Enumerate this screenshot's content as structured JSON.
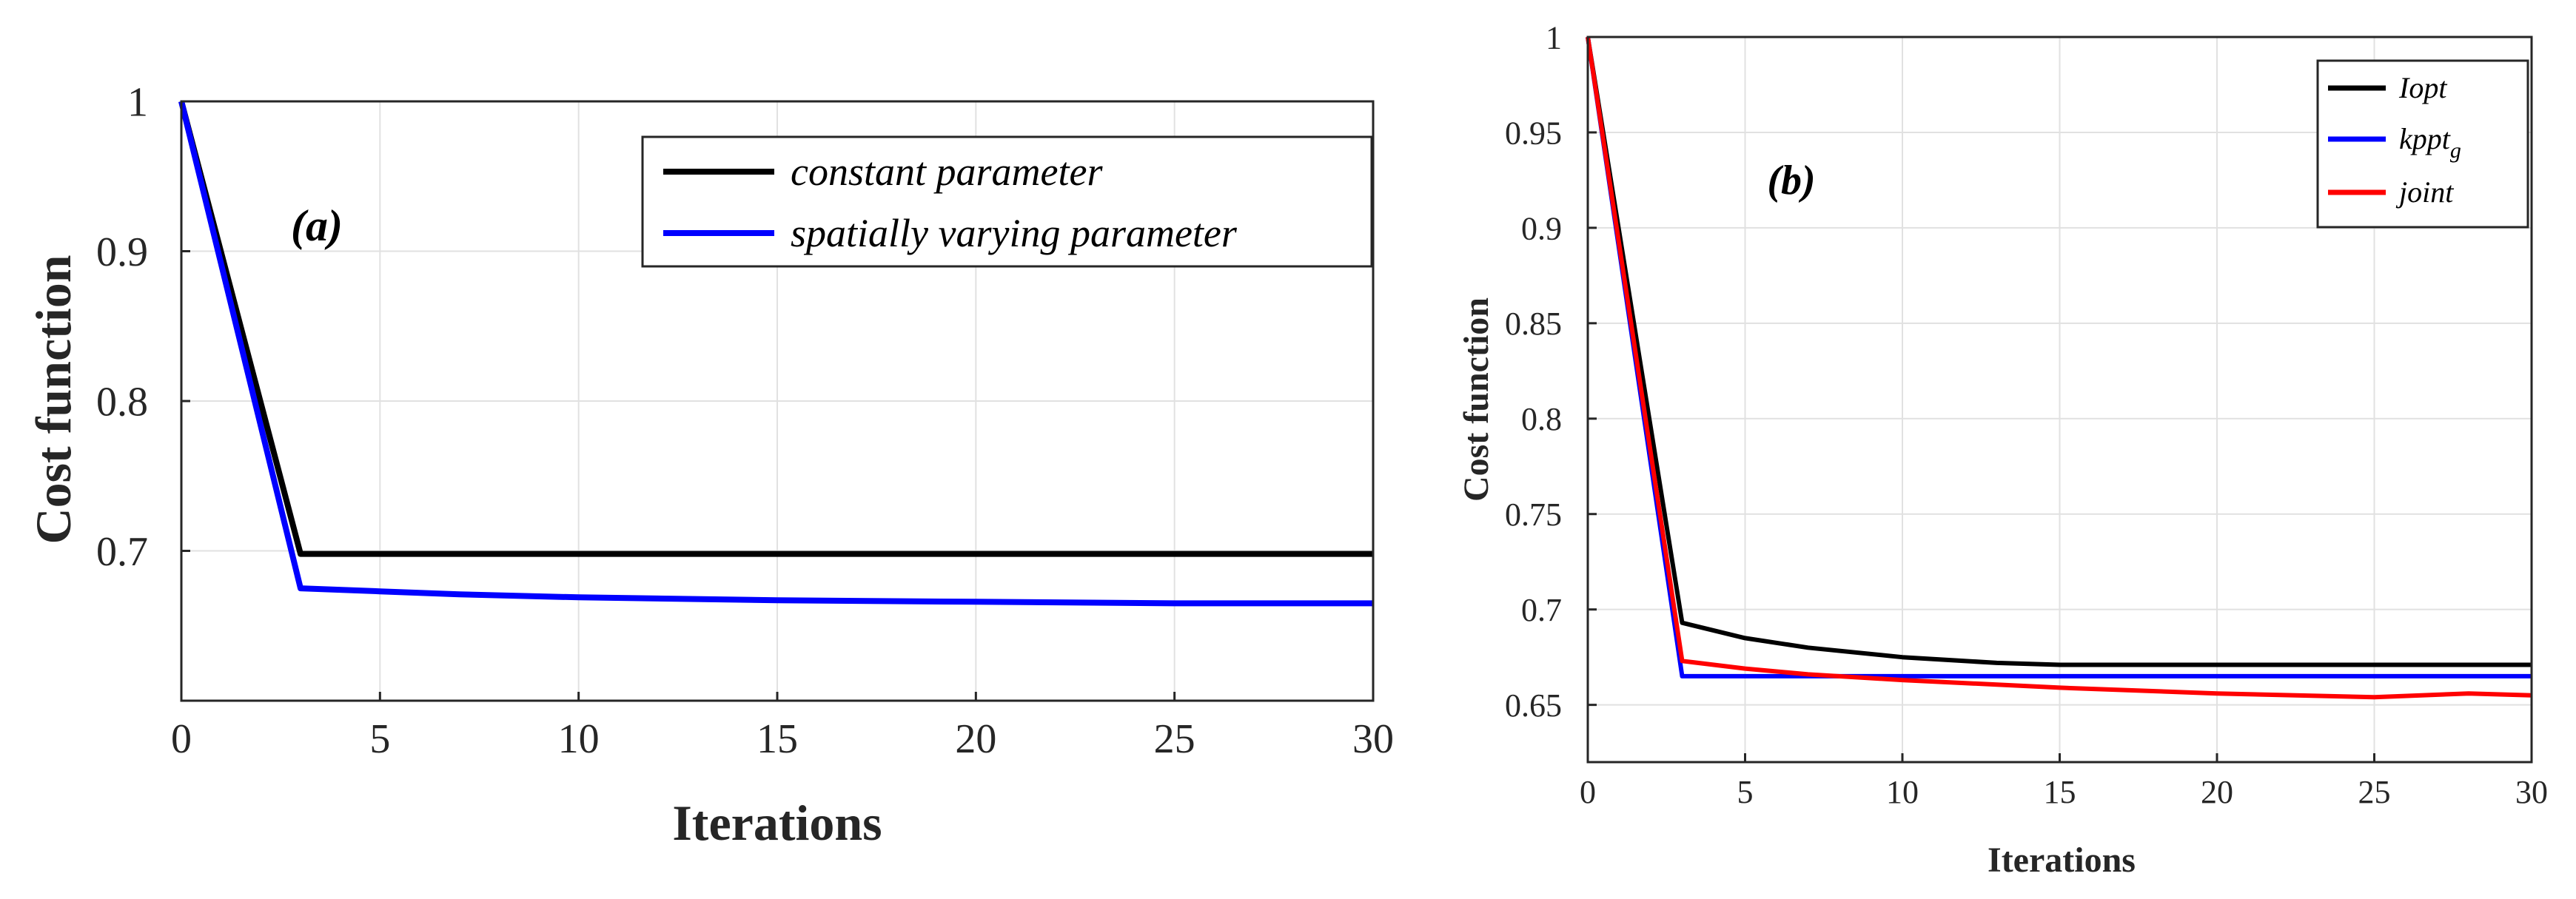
{
  "chart_data": [
    {
      "type": "line",
      "panel_label": "(a)",
      "xlabel": "Iterations",
      "ylabel": "Cost function",
      "xlim": [
        0,
        30
      ],
      "ylim": [
        0.6,
        1.0
      ],
      "xticks": [
        0,
        5,
        10,
        15,
        20,
        25,
        30
      ],
      "xtick_labels": [
        "0",
        "5",
        "10",
        "15",
        "20",
        "25",
        "30"
      ],
      "yticks": [
        0.7,
        0.8,
        0.9,
        1.0
      ],
      "ytick_labels": [
        "0.7",
        "0.8",
        "0.9",
        "1"
      ],
      "grid": true,
      "legend_position": "top-right",
      "series": [
        {
          "name": "constant parameter",
          "color": "#000000",
          "x": [
            0,
            3,
            5,
            10,
            15,
            20,
            25,
            30
          ],
          "y": [
            1.0,
            0.698,
            0.698,
            0.698,
            0.698,
            0.698,
            0.698,
            0.698
          ]
        },
        {
          "name": "spatially varying parameter",
          "color": "#0000ff",
          "x": [
            0,
            3,
            5,
            7,
            10,
            15,
            20,
            25,
            30
          ],
          "y": [
            1.0,
            0.675,
            0.673,
            0.671,
            0.669,
            0.667,
            0.666,
            0.665,
            0.665
          ]
        }
      ]
    },
    {
      "type": "line",
      "panel_label": "(b)",
      "xlabel": "Iterations",
      "ylabel": "Cost function",
      "xlim": [
        0,
        30
      ],
      "ylim": [
        0.62,
        1.0
      ],
      "xticks": [
        0,
        5,
        10,
        15,
        20,
        25,
        30
      ],
      "xtick_labels": [
        "0",
        "5",
        "10",
        "15",
        "20",
        "25",
        "30"
      ],
      "yticks": [
        0.65,
        0.7,
        0.75,
        0.8,
        0.85,
        0.9,
        0.95,
        1.0
      ],
      "ytick_labels": [
        "0.65",
        "0.7",
        "0.75",
        "0.8",
        "0.85",
        "0.9",
        "0.95",
        "1"
      ],
      "grid": true,
      "legend_position": "top-right",
      "series": [
        {
          "name": "Iopt",
          "color": "#000000",
          "x": [
            0,
            3,
            5,
            7,
            10,
            13,
            15,
            20,
            25,
            30
          ],
          "y": [
            1.0,
            0.693,
            0.685,
            0.68,
            0.675,
            0.672,
            0.671,
            0.671,
            0.671,
            0.671
          ]
        },
        {
          "name": "kppt",
          "name_subscript": "g",
          "color": "#0000ff",
          "x": [
            0,
            3,
            5,
            10,
            15,
            20,
            25,
            30
          ],
          "y": [
            1.0,
            0.665,
            0.665,
            0.665,
            0.665,
            0.665,
            0.665,
            0.665
          ]
        },
        {
          "name": "joint",
          "color": "#ff0000",
          "x": [
            0,
            3,
            5,
            7,
            10,
            15,
            20,
            25,
            28,
            30
          ],
          "y": [
            1.0,
            0.673,
            0.669,
            0.666,
            0.663,
            0.659,
            0.656,
            0.654,
            0.656,
            0.655
          ]
        }
      ]
    }
  ]
}
